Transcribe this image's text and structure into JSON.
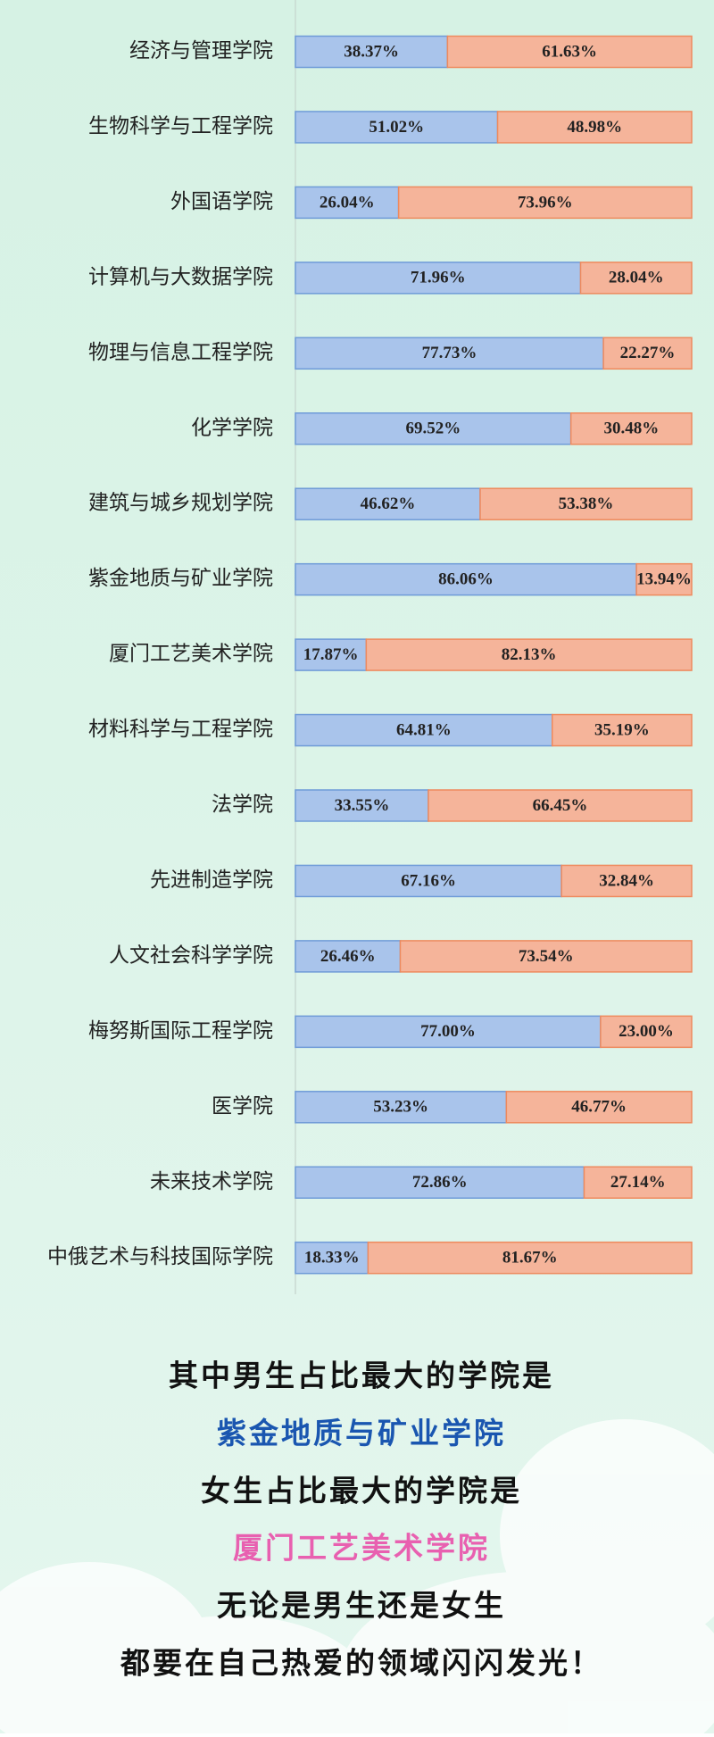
{
  "chart_data": {
    "type": "stacked_bar_horizontal",
    "categories": [
      "经济与管理学院",
      "生物科学与工程学院",
      "外国语学院",
      "计算机与大数据学院",
      "物理与信息工程学院",
      "化学学院",
      "建筑与城乡规划学院",
      "紫金地质与矿业学院",
      "厦门工艺美术学院",
      "材料科学与工程学院",
      "法学院",
      "先进制造学院",
      "人文社会科学学院",
      "梅努斯国际工程学院",
      "医学院",
      "未来技术学院",
      "中俄艺术与科技国际学院"
    ],
    "series": [
      {
        "color": "#a9c4eb",
        "stroke": "#6f9bd8",
        "values": [
          38.37,
          51.02,
          26.04,
          71.96,
          77.73,
          69.52,
          46.62,
          86.06,
          17.87,
          64.81,
          33.55,
          67.16,
          26.46,
          77.0,
          53.23,
          72.86,
          18.33
        ],
        "value_labels": [
          "38.37%",
          "51.02%",
          "26.04%",
          "71.96%",
          "77.73%",
          "69.52%",
          "46.62%",
          "86.06%",
          "17.87%",
          "64.81%",
          "33.55%",
          "67.16%",
          "26.46%",
          "77.00%",
          "53.23%",
          "72.86%",
          "18.33%"
        ]
      },
      {
        "color": "#f5b49a",
        "stroke": "#ee8a5e",
        "values": [
          61.63,
          48.98,
          73.96,
          28.04,
          22.27,
          30.48,
          53.38,
          13.94,
          82.13,
          35.19,
          66.45,
          32.84,
          73.54,
          23.0,
          46.77,
          27.14,
          81.67
        ],
        "value_labels": [
          "61.63%",
          "48.98%",
          "73.96%",
          "28.04%",
          "22.27%",
          "30.48%",
          "53.38%",
          "13.94%",
          "82.13%",
          "35.19%",
          "66.45%",
          "32.84%",
          "73.54%",
          "23.00%",
          "46.77%",
          "27.14%",
          "81.67%"
        ]
      }
    ],
    "xlim": [
      0,
      100
    ]
  },
  "notes": [
    {
      "text": "其中男生占比最大的学院是",
      "color": "#111111"
    },
    {
      "text": "紫金地质与矿业学院",
      "color": "#1a56b0"
    },
    {
      "text": "女生占比最大的学院是",
      "color": "#111111"
    },
    {
      "text": "厦门工艺美术学院",
      "color": "#e860b0"
    },
    {
      "text": "无论是男生还是女生",
      "color": "#111111"
    },
    {
      "text": "都要在自己热爱的领域闪闪发光！",
      "color": "#111111"
    }
  ]
}
